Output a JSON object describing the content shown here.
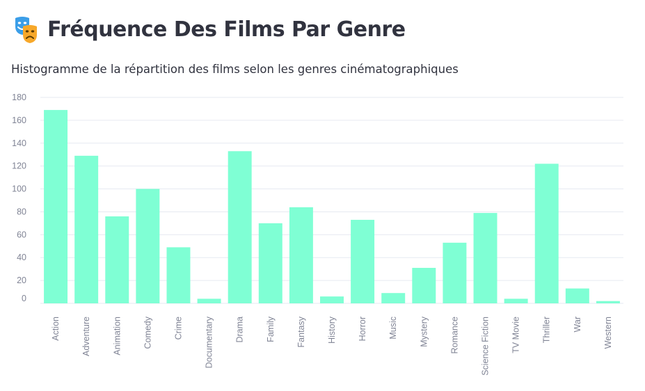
{
  "header": {
    "icon": "performing-arts-masks-icon",
    "title": "Fréquence Des Films Par Genre",
    "subtitle": "Histogramme de la répartition des films selon les genres cinématographiques"
  },
  "colors": {
    "bar": "#7fffd4",
    "grid": "#e6eaf1",
    "text": "#31333f",
    "tick": "#808495",
    "mask_blue": "#3b9ee8",
    "mask_orange": "#f7a82a"
  },
  "chart_data": {
    "type": "bar",
    "title": "",
    "xlabel": "",
    "ylabel": "",
    "categories": [
      "Action",
      "Adventure",
      "Animation",
      "Comedy",
      "Crime",
      "Documentary",
      "Drama",
      "Family",
      "Fantasy",
      "History",
      "Horror",
      "Music",
      "Mystery",
      "Romance",
      "Science Fiction",
      "TV Movie",
      "Thriller",
      "War",
      "Western"
    ],
    "values": [
      169,
      129,
      76,
      100,
      49,
      4,
      133,
      70,
      84,
      6,
      73,
      9,
      31,
      53,
      79,
      4,
      122,
      13,
      2
    ],
    "yticks": [
      0,
      20,
      40,
      60,
      80,
      100,
      120,
      140,
      160,
      180
    ],
    "ylim": [
      0,
      180
    ],
    "grid": true,
    "legend": "none"
  }
}
